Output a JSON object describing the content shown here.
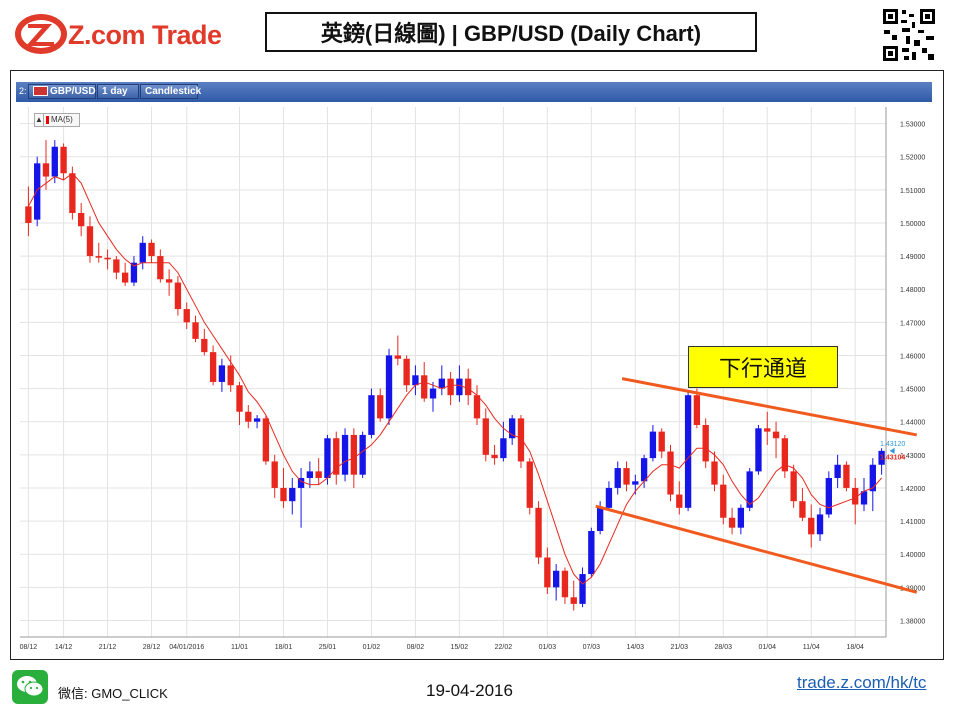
{
  "header": {
    "logo_text": "Z.com Trade",
    "title": "英鎊(日線圖) | GBP/USD  (Daily Chart)"
  },
  "toolbar": {
    "index": "2:",
    "symbol": "GBP/USD",
    "interval": "1 day",
    "chart_type": "Candlestick"
  },
  "indicator": {
    "label": "MA(5)",
    "arrow": "▲"
  },
  "annotation": {
    "label": "下行通道"
  },
  "prices": {
    "ask": "1.43120",
    "bid": "1.43104"
  },
  "footer": {
    "wechat_label": "微信: GMO_CLICK",
    "date": "19-04-2016",
    "url": "trade.z.com/hk/tc"
  },
  "colors": {
    "up": "#1515e8",
    "down": "#e8281e",
    "ma": "#e8281e",
    "channel": "#f05a1e",
    "brand": "#e03a2b"
  },
  "chart_data": {
    "type": "candlestick",
    "title": "GBP/USD",
    "ylim": [
      1.375,
      1.535
    ],
    "y_ticks": [
      "1.53000",
      "1.52000",
      "1.51000",
      "1.50000",
      "1.49000",
      "1.48000",
      "1.47000",
      "1.46000",
      "1.45000",
      "1.44000",
      "1.43000",
      "1.42000",
      "1.41000",
      "1.40000",
      "1.39000",
      "1.38000"
    ],
    "x_ticks": [
      {
        "i": 0,
        "label": "08/12"
      },
      {
        "i": 4,
        "label": "14/12"
      },
      {
        "i": 9,
        "label": "21/12"
      },
      {
        "i": 14,
        "label": "28/12"
      },
      {
        "i": 18,
        "label": "04/01/2016"
      },
      {
        "i": 24,
        "label": "11/01"
      },
      {
        "i": 29,
        "label": "18/01"
      },
      {
        "i": 34,
        "label": "25/01"
      },
      {
        "i": 39,
        "label": "01/02"
      },
      {
        "i": 44,
        "label": "08/02"
      },
      {
        "i": 49,
        "label": "15/02"
      },
      {
        "i": 54,
        "label": "22/02"
      },
      {
        "i": 59,
        "label": "01/03"
      },
      {
        "i": 64,
        "label": "07/03"
      },
      {
        "i": 69,
        "label": "14/03"
      },
      {
        "i": 74,
        "label": "21/03"
      },
      {
        "i": 79,
        "label": "28/03"
      },
      {
        "i": 84,
        "label": "01/04"
      },
      {
        "i": 89,
        "label": "11/04"
      },
      {
        "i": 94,
        "label": "18/04"
      }
    ],
    "candles": [
      [
        1.505,
        1.511,
        1.496,
        1.5
      ],
      [
        1.501,
        1.52,
        1.499,
        1.518
      ],
      [
        1.518,
        1.525,
        1.51,
        1.514
      ],
      [
        1.514,
        1.525,
        1.512,
        1.523
      ],
      [
        1.523,
        1.524,
        1.513,
        1.515
      ],
      [
        1.515,
        1.517,
        1.501,
        1.503
      ],
      [
        1.503,
        1.506,
        1.496,
        1.499
      ],
      [
        1.499,
        1.502,
        1.488,
        1.49
      ],
      [
        1.49,
        1.494,
        1.488,
        1.4895
      ],
      [
        1.4895,
        1.492,
        1.486,
        1.489
      ],
      [
        1.489,
        1.49,
        1.483,
        1.485
      ],
      [
        1.485,
        1.488,
        1.481,
        1.482
      ],
      [
        1.482,
        1.49,
        1.481,
        1.488
      ],
      [
        1.488,
        1.496,
        1.486,
        1.494
      ],
      [
        1.494,
        1.495,
        1.488,
        1.49
      ],
      [
        1.49,
        1.492,
        1.482,
        1.483
      ],
      [
        1.483,
        1.486,
        1.478,
        1.482
      ],
      [
        1.482,
        1.484,
        1.472,
        1.474
      ],
      [
        1.474,
        1.476,
        1.468,
        1.47
      ],
      [
        1.47,
        1.472,
        1.464,
        1.465
      ],
      [
        1.465,
        1.468,
        1.46,
        1.461
      ],
      [
        1.461,
        1.463,
        1.451,
        1.452
      ],
      [
        1.452,
        1.459,
        1.449,
        1.457
      ],
      [
        1.457,
        1.46,
        1.449,
        1.451
      ],
      [
        1.451,
        1.452,
        1.439,
        1.443
      ],
      [
        1.443,
        1.445,
        1.438,
        1.44
      ],
      [
        1.44,
        1.442,
        1.438,
        1.441
      ],
      [
        1.441,
        1.442,
        1.427,
        1.428
      ],
      [
        1.428,
        1.43,
        1.417,
        1.42
      ],
      [
        1.42,
        1.426,
        1.414,
        1.416
      ],
      [
        1.416,
        1.423,
        1.412,
        1.42
      ],
      [
        1.42,
        1.426,
        1.408,
        1.423
      ],
      [
        1.423,
        1.428,
        1.42,
        1.425
      ],
      [
        1.425,
        1.429,
        1.421,
        1.423
      ],
      [
        1.423,
        1.436,
        1.421,
        1.435
      ],
      [
        1.435,
        1.437,
        1.421,
        1.424
      ],
      [
        1.424,
        1.438,
        1.422,
        1.436
      ],
      [
        1.436,
        1.438,
        1.42,
        1.424
      ],
      [
        1.424,
        1.437,
        1.423,
        1.436
      ],
      [
        1.436,
        1.45,
        1.435,
        1.448
      ],
      [
        1.448,
        1.45,
        1.44,
        1.441
      ],
      [
        1.441,
        1.462,
        1.439,
        1.46
      ],
      [
        1.46,
        1.466,
        1.457,
        1.459
      ],
      [
        1.459,
        1.46,
        1.449,
        1.451
      ],
      [
        1.451,
        1.457,
        1.448,
        1.454
      ],
      [
        1.454,
        1.458,
        1.446,
        1.447
      ],
      [
        1.447,
        1.452,
        1.443,
        1.45
      ],
      [
        1.45,
        1.457,
        1.448,
        1.453
      ],
      [
        1.453,
        1.455,
        1.445,
        1.448
      ],
      [
        1.448,
        1.457,
        1.446,
        1.453
      ],
      [
        1.453,
        1.456,
        1.445,
        1.448
      ],
      [
        1.448,
        1.451,
        1.439,
        1.441
      ],
      [
        1.441,
        1.444,
        1.428,
        1.43
      ],
      [
        1.43,
        1.433,
        1.427,
        1.429
      ],
      [
        1.429,
        1.44,
        1.428,
        1.435
      ],
      [
        1.435,
        1.442,
        1.433,
        1.441
      ],
      [
        1.441,
        1.442,
        1.426,
        1.428
      ],
      [
        1.428,
        1.429,
        1.412,
        1.414
      ],
      [
        1.414,
        1.416,
        1.397,
        1.399
      ],
      [
        1.399,
        1.402,
        1.388,
        1.39
      ],
      [
        1.39,
        1.397,
        1.386,
        1.395
      ],
      [
        1.395,
        1.396,
        1.385,
        1.387
      ],
      [
        1.387,
        1.392,
        1.383,
        1.385
      ],
      [
        1.385,
        1.396,
        1.384,
        1.394
      ],
      [
        1.394,
        1.408,
        1.393,
        1.407
      ],
      [
        1.407,
        1.416,
        1.406,
        1.414
      ],
      [
        1.414,
        1.422,
        1.413,
        1.42
      ],
      [
        1.42,
        1.428,
        1.418,
        1.426
      ],
      [
        1.426,
        1.428,
        1.419,
        1.421
      ],
      [
        1.421,
        1.424,
        1.418,
        1.422
      ],
      [
        1.422,
        1.43,
        1.42,
        1.429
      ],
      [
        1.429,
        1.439,
        1.428,
        1.437
      ],
      [
        1.437,
        1.438,
        1.429,
        1.431
      ],
      [
        1.431,
        1.433,
        1.416,
        1.418
      ],
      [
        1.418,
        1.422,
        1.412,
        1.414
      ],
      [
        1.414,
        1.449,
        1.413,
        1.448
      ],
      [
        1.448,
        1.45,
        1.438,
        1.439
      ],
      [
        1.439,
        1.441,
        1.426,
        1.428
      ],
      [
        1.428,
        1.431,
        1.419,
        1.421
      ],
      [
        1.421,
        1.424,
        1.409,
        1.411
      ],
      [
        1.411,
        1.414,
        1.406,
        1.408
      ],
      [
        1.408,
        1.415,
        1.406,
        1.414
      ],
      [
        1.414,
        1.426,
        1.413,
        1.425
      ],
      [
        1.425,
        1.439,
        1.424,
        1.438
      ],
      [
        1.438,
        1.443,
        1.433,
        1.437
      ],
      [
        1.437,
        1.44,
        1.429,
        1.435
      ],
      [
        1.435,
        1.436,
        1.423,
        1.425
      ],
      [
        1.425,
        1.427,
        1.414,
        1.416
      ],
      [
        1.416,
        1.42,
        1.41,
        1.411
      ],
      [
        1.411,
        1.415,
        1.402,
        1.406
      ],
      [
        1.406,
        1.414,
        1.404,
        1.412
      ],
      [
        1.412,
        1.425,
        1.411,
        1.423
      ],
      [
        1.423,
        1.43,
        1.42,
        1.427
      ],
      [
        1.427,
        1.428,
        1.419,
        1.42
      ],
      [
        1.42,
        1.423,
        1.409,
        1.415
      ],
      [
        1.415,
        1.423,
        1.413,
        1.419
      ],
      [
        1.419,
        1.429,
        1.413,
        1.427
      ],
      [
        1.427,
        1.432,
        1.424,
        1.4312
      ]
    ],
    "ma5": [
      1.505,
      1.51,
      1.512,
      1.514,
      1.513,
      1.515,
      1.512,
      1.506,
      1.5,
      1.496,
      1.492,
      1.489,
      1.487,
      1.488,
      1.488,
      1.488,
      1.488,
      1.485,
      1.48,
      1.475,
      1.47,
      1.466,
      1.462,
      1.458,
      1.454,
      1.449,
      1.446,
      1.442,
      1.436,
      1.43,
      1.425,
      1.422,
      1.421,
      1.421,
      1.423,
      1.426,
      1.428,
      1.429,
      1.431,
      1.433,
      1.436,
      1.44,
      1.444,
      1.448,
      1.451,
      1.452,
      1.451,
      1.45,
      1.451,
      1.451,
      1.45,
      1.448,
      1.445,
      1.441,
      1.438,
      1.436,
      1.435,
      1.431,
      1.424,
      1.416,
      1.408,
      1.4,
      1.394,
      1.391,
      1.393,
      1.397,
      1.403,
      1.409,
      1.415,
      1.419,
      1.422,
      1.425,
      1.427,
      1.427,
      1.426,
      1.429,
      1.432,
      1.432,
      1.43,
      1.427,
      1.422,
      1.418,
      1.415,
      1.417,
      1.421,
      1.425,
      1.427,
      1.426,
      1.423,
      1.418,
      1.415,
      1.414,
      1.415,
      1.416,
      1.417,
      1.419,
      1.42,
      1.423
    ]
  }
}
